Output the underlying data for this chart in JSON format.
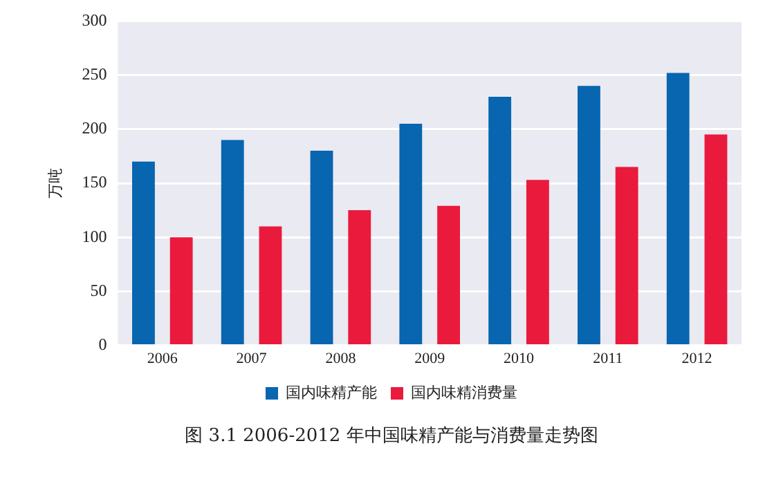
{
  "chart_data": {
    "type": "bar",
    "ylabel": "万吨",
    "categories": [
      "2006",
      "2007",
      "2008",
      "2009",
      "2010",
      "2011",
      "2012"
    ],
    "series": [
      {
        "name": "国内味精产能",
        "color": "#0865b0",
        "values": [
          170,
          190,
          180,
          205,
          230,
          240,
          252
        ]
      },
      {
        "name": "国内味精消费量",
        "color": "#ea1a3c",
        "values": [
          100,
          110,
          125,
          129,
          153,
          165,
          195
        ]
      }
    ],
    "ylim": [
      0,
      300
    ],
    "yticks": [
      0,
      50,
      100,
      150,
      200,
      250,
      300
    ],
    "grid": "y",
    "legend": "bottom",
    "annotations": [
      "图 3.1  2006-2012 年中国味精产能与消费量走势图"
    ]
  }
}
